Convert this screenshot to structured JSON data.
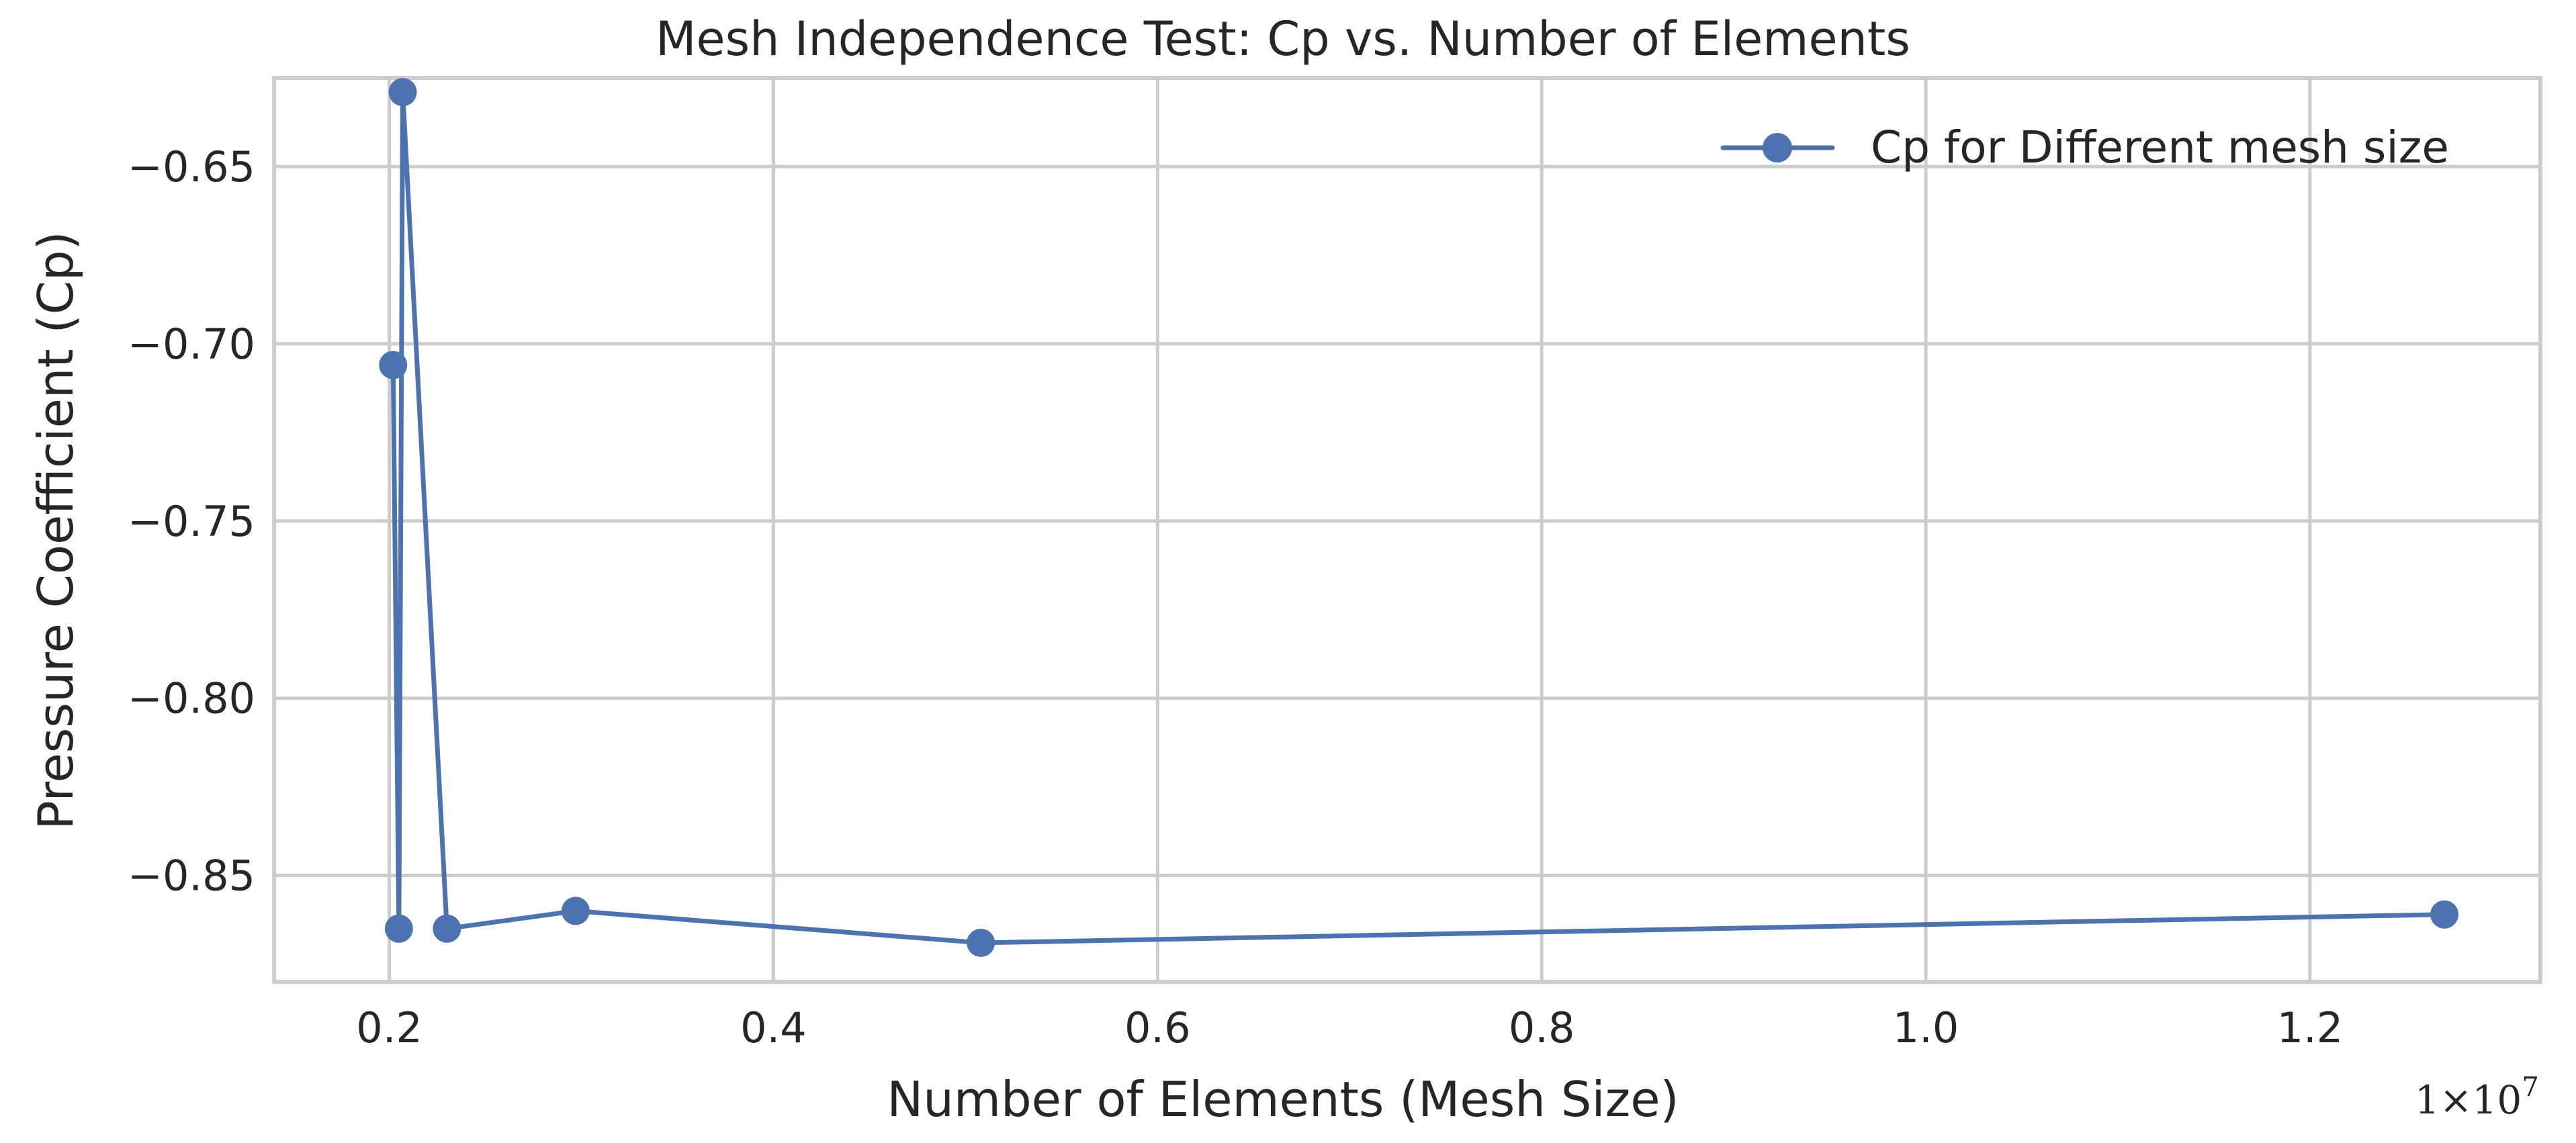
{
  "chart_data": {
    "type": "line",
    "title": "Mesh Independence Test: Cp vs. Number of Elements",
    "xlabel": "Number of Elements (Mesh Size)",
    "ylabel": "Pressure Coefficient (Cp)",
    "x_offset_label": "1×10",
    "x_offset_exp": "7",
    "xlim": [
      0.14,
      1.32
    ],
    "ylim": [
      -0.88,
      -0.625
    ],
    "x_ticks": [
      0.2,
      0.4,
      0.6,
      0.8,
      1.0,
      1.2
    ],
    "x_tick_labels": [
      "0.2",
      "0.4",
      "0.6",
      "0.8",
      "1.0",
      "1.2"
    ],
    "y_ticks": [
      -0.65,
      -0.7,
      -0.75,
      -0.8,
      -0.85
    ],
    "y_tick_labels": [
      "−0.65",
      "−0.70",
      "−0.75",
      "−0.80",
      "−0.85"
    ],
    "grid": true,
    "legend_position": "top-right",
    "series": [
      {
        "name": "Cp for Different mesh size",
        "color": "#4c72b0",
        "marker": "circle",
        "x": [
          0.202,
          0.205,
          0.207,
          0.23,
          0.297,
          0.508,
          1.27
        ],
        "y": [
          -0.706,
          -0.865,
          -0.629,
          -0.865,
          -0.86,
          -0.869,
          -0.861
        ]
      }
    ]
  }
}
